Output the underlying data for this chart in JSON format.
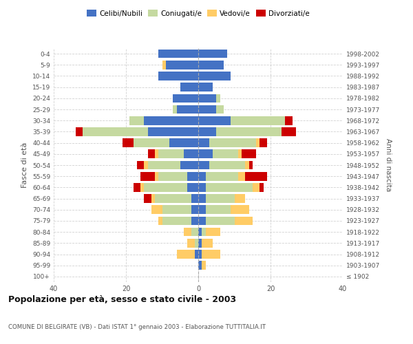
{
  "age_groups": [
    "100+",
    "95-99",
    "90-94",
    "85-89",
    "80-84",
    "75-79",
    "70-74",
    "65-69",
    "60-64",
    "55-59",
    "50-54",
    "45-49",
    "40-44",
    "35-39",
    "30-34",
    "25-29",
    "20-24",
    "15-19",
    "10-14",
    "5-9",
    "0-4"
  ],
  "birth_years": [
    "≤ 1902",
    "1903-1907",
    "1908-1912",
    "1913-1917",
    "1918-1922",
    "1923-1927",
    "1928-1932",
    "1933-1937",
    "1938-1942",
    "1943-1947",
    "1948-1952",
    "1953-1957",
    "1958-1962",
    "1963-1967",
    "1968-1972",
    "1973-1977",
    "1978-1982",
    "1983-1987",
    "1988-1992",
    "1993-1997",
    "1998-2002"
  ],
  "colors": {
    "celibi": "#4472C4",
    "coniugati": "#C5D9A0",
    "vedovi": "#FFCC66",
    "divorziati": "#CC0000"
  },
  "males": {
    "celibi": [
      0,
      0,
      1,
      0,
      0,
      2,
      2,
      2,
      3,
      3,
      5,
      4,
      8,
      14,
      15,
      6,
      7,
      5,
      11,
      9,
      11
    ],
    "coniugati": [
      0,
      0,
      0,
      1,
      2,
      8,
      8,
      10,
      12,
      8,
      9,
      7,
      10,
      18,
      4,
      1,
      0,
      0,
      0,
      0,
      0
    ],
    "vedovi": [
      0,
      0,
      5,
      2,
      2,
      1,
      3,
      1,
      1,
      1,
      1,
      1,
      0,
      0,
      0,
      0,
      0,
      0,
      0,
      1,
      0
    ],
    "divorziati": [
      0,
      0,
      0,
      0,
      0,
      0,
      0,
      2,
      2,
      4,
      2,
      2,
      3,
      2,
      0,
      0,
      0,
      0,
      0,
      0,
      0
    ]
  },
  "females": {
    "celibi": [
      0,
      1,
      1,
      1,
      1,
      2,
      2,
      2,
      2,
      2,
      3,
      4,
      3,
      5,
      9,
      5,
      5,
      4,
      9,
      7,
      8
    ],
    "coniugati": [
      0,
      0,
      0,
      0,
      1,
      8,
      7,
      8,
      13,
      9,
      10,
      7,
      13,
      18,
      15,
      2,
      1,
      0,
      0,
      0,
      0
    ],
    "vedovi": [
      0,
      1,
      5,
      3,
      4,
      5,
      5,
      3,
      2,
      2,
      1,
      1,
      1,
      0,
      0,
      0,
      0,
      0,
      0,
      0,
      0
    ],
    "divorziati": [
      0,
      0,
      0,
      0,
      0,
      0,
      0,
      0,
      1,
      6,
      1,
      4,
      2,
      4,
      2,
      0,
      0,
      0,
      0,
      0,
      0
    ]
  },
  "xlim": 40,
  "title": "Popolazione per età, sesso e stato civile - 2003",
  "subtitle": "COMUNE DI BELGIRATE (VB) - Dati ISTAT 1° gennaio 2003 - Elaborazione TUTTITALIA.IT",
  "ylabel_left": "Fasce di età",
  "ylabel_right": "Anni di nascita",
  "background": "#FFFFFF",
  "grid_color": "#CCCCCC"
}
